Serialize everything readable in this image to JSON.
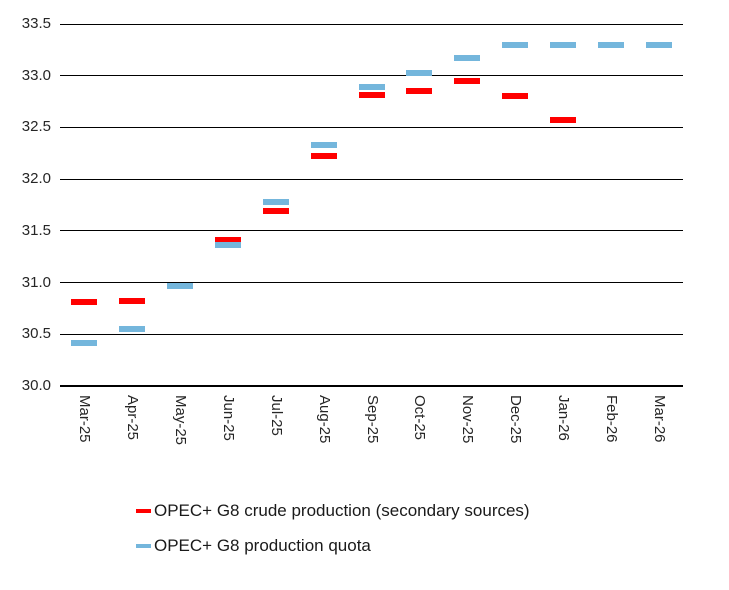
{
  "chart_data": {
    "type": "scatter",
    "marker_style": "dash",
    "title": "",
    "categories": [
      "Mar-25",
      "Apr-25",
      "May-25",
      "Jun-25",
      "Jul-25",
      "Aug-25",
      "Sep-25",
      "Oct-25",
      "Nov-25",
      "Dec-25",
      "Jan-26",
      "Feb-26",
      "Mar-26"
    ],
    "series": [
      {
        "name": "OPEC+ G8 crude production (secondary sources)",
        "color": "#FF0000",
        "values": [
          30.81,
          30.82,
          30.97,
          31.41,
          31.69,
          32.22,
          32.81,
          32.85,
          32.95,
          32.8,
          32.57,
          null,
          null
        ]
      },
      {
        "name": "OPEC+ G8 production quota",
        "color": "#74B6DC",
        "values": [
          30.42,
          30.55,
          30.97,
          31.36,
          31.78,
          32.33,
          32.89,
          33.03,
          33.17,
          33.3,
          33.3,
          33.3,
          33.3
        ]
      }
    ],
    "xlabel": "",
    "ylabel": "",
    "ylim": [
      30.0,
      33.5
    ],
    "ytick_step": 0.5,
    "yticks": [
      "30.0",
      "30.5",
      "31.0",
      "31.5",
      "32.0",
      "32.5",
      "33.0",
      "33.5"
    ],
    "grid": true,
    "gridline_color": "#000000",
    "text_color": "#262626",
    "legend_position": "bottom-left"
  }
}
